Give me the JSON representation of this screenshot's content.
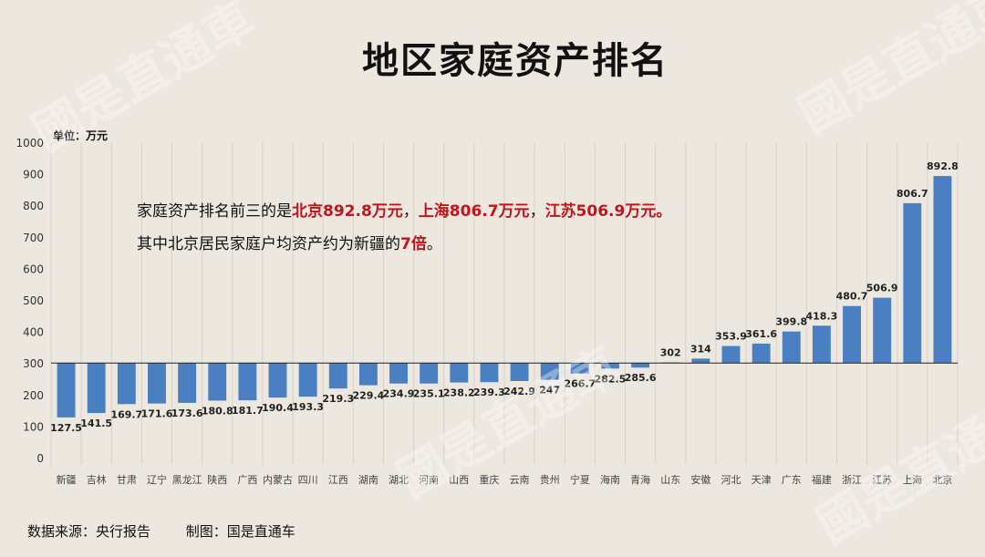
{
  "title": "地区家庭资产排名",
  "unit_label": "单位：万元",
  "annotation": {
    "line1": {
      "prefix": "家庭资产排名前三的是",
      "hl1": "北京892.8万元",
      "sep1": "，",
      "hl2": "上海806.7万元",
      "sep2": "，",
      "hl3": "江苏506.9万元。"
    },
    "line2": {
      "prefix": "其中北京居民家庭户均资产约为新疆的",
      "hl": "7倍",
      "suffix": "。"
    }
  },
  "footer": {
    "source": "数据来源：央行报告",
    "maker": "制图：国是直通车"
  },
  "watermark": "國是直通車",
  "colors": {
    "bar": "#4a7fc1",
    "highlight": "#c0151d",
    "background": "#ece7df"
  },
  "chart_data": {
    "type": "bar",
    "ylim": [
      0,
      1000
    ],
    "yticks": [
      "0",
      "100",
      "200",
      "300",
      "400",
      "500",
      "600",
      "700",
      "800",
      "900",
      "1000"
    ],
    "baseline": 300,
    "categories": [
      "新疆",
      "吉林",
      "甘肃",
      "辽宁",
      "黑龙江",
      "陕西",
      "广西",
      "内蒙古",
      "四川",
      "江西",
      "湖南",
      "湖北",
      "河南",
      "山西",
      "重庆",
      "云南",
      "贵州",
      "宁夏",
      "海南",
      "青海",
      "山东",
      "安徽",
      "河北",
      "天津",
      "广东",
      "福建",
      "浙江",
      "江苏",
      "上海",
      "北京"
    ],
    "values": [
      127.5,
      141.5,
      169.7,
      171.6,
      173.6,
      180.8,
      181.7,
      190.4,
      193.3,
      219.3,
      229.4,
      234.9,
      235.1,
      238.2,
      239.3,
      242.9,
      247,
      266.7,
      282.5,
      285.6,
      302,
      314,
      353.9,
      361.6,
      399.8,
      418.3,
      480.7,
      506.9,
      806.7,
      892.8
    ],
    "labels": [
      "127.5",
      "141.5",
      "169.7",
      "171.6",
      "173.6",
      "180.8",
      "181.7",
      "190.4",
      "193.3",
      "219.3",
      "229.4",
      "234.9",
      "235.1",
      "238.2",
      "239.3",
      "242.9",
      "247",
      "266.7",
      "282.5",
      "285.6",
      "302",
      "314",
      "353.9",
      "361.6",
      "399.8",
      "418.3",
      "480.7",
      "506.9",
      "806.7",
      "892.8"
    ],
    "grid": "vertical"
  }
}
